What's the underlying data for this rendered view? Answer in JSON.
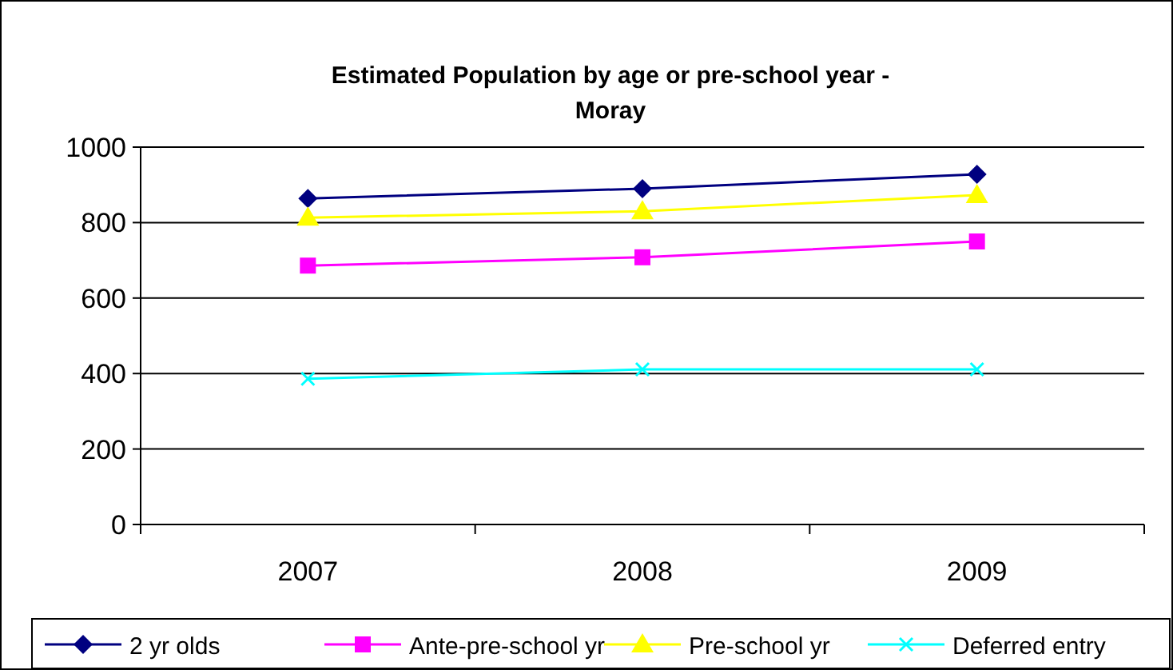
{
  "chart_data": {
    "type": "line",
    "title": "Estimated Population by age or pre-school year - Moray",
    "categories": [
      "2007",
      "2008",
      "2009"
    ],
    "ylim": [
      0,
      1000
    ],
    "yticks": [
      0,
      200,
      400,
      600,
      800,
      1000
    ],
    "grid": "y",
    "legend": "bottom",
    "series": [
      {
        "name": "2 yr olds",
        "color": "#000080",
        "marker": "diamond",
        "values": [
          864,
          890,
          928
        ]
      },
      {
        "name": "Ante-pre-school yr",
        "color": "#ff00ff",
        "marker": "square",
        "values": [
          686,
          708,
          750
        ]
      },
      {
        "name": "Pre-school yr",
        "color": "#ffff00",
        "marker": "triangle",
        "values": [
          813,
          830,
          873
        ]
      },
      {
        "name": "Deferred entry",
        "color": "#00ffff",
        "marker": "cross",
        "values": [
          386,
          411,
          411
        ]
      }
    ]
  }
}
